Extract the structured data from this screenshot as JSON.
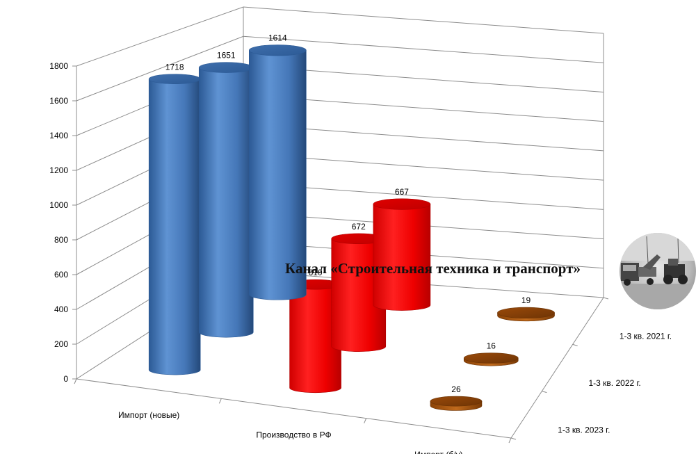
{
  "chart_data": {
    "type": "bar",
    "subtype": "3d-cylinder",
    "categories": [
      "Импорт (новые)",
      "Производство в РФ",
      "Импорт (б/у)"
    ],
    "series": [
      {
        "name": "1-3 кв. 2021 г.",
        "values": [
          1614,
          667,
          19
        ],
        "labels": [
          "1614",
          "667",
          "19"
        ]
      },
      {
        "name": "1-3 кв. 2022 г.",
        "values": [
          1651,
          672,
          16
        ],
        "labels": [
          "1651",
          "672",
          "16"
        ]
      },
      {
        "name": "1-3 кв. 2023 г.",
        "values": [
          1718,
          610,
          26
        ],
        "labels": [
          "1718",
          "610",
          "26"
        ]
      }
    ],
    "category_colors": [
      "#4a7ebf",
      "#ff0000",
      "#a0520a"
    ],
    "ylim": [
      0,
      1800
    ],
    "yticks": [
      "0",
      "200",
      "400",
      "600",
      "800",
      "1000",
      "1200",
      "1400",
      "1600",
      "1800"
    ],
    "grid": true,
    "legend": "depth-axis"
  },
  "watermark": {
    "text": "Канал «Строительная техника и транспорт»",
    "logo_icon": "construction-machinery-photo-icon"
  }
}
